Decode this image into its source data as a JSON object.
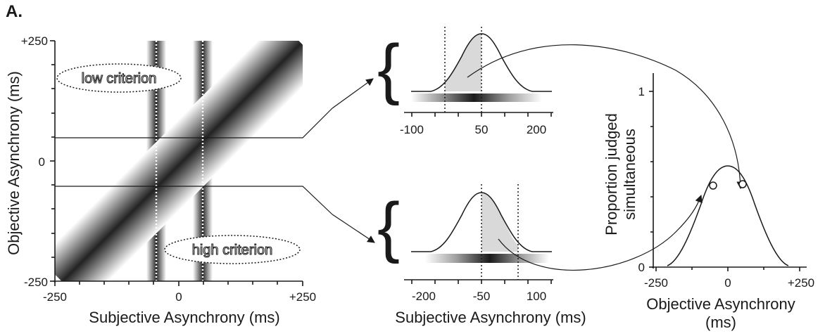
{
  "panel_label": "A.",
  "main_plot": {
    "x_ticks": [
      "-250",
      "0",
      "+250"
    ],
    "y_ticks": [
      "+250",
      "0",
      "-250"
    ],
    "xlabel": "Subjective Asynchrony (ms)",
    "ylabel": "Objective Asynchrony (ms)",
    "low_criterion_label": "low criterion",
    "high_criterion_label": "high criterion",
    "criteria_ms": [
      -50,
      50
    ],
    "slice_levels_ms": [
      50,
      -50
    ]
  },
  "top_slice": {
    "x_ticks": [
      "-100",
      "50",
      "200"
    ],
    "gaussian_mean_ms": 50,
    "criterion_lines_ms": [
      -50,
      50
    ]
  },
  "bottom_slice": {
    "x_ticks": [
      "-200",
      "-50",
      "100"
    ],
    "gaussian_mean_ms": -50,
    "criterion_lines_ms": [
      -50,
      50
    ],
    "xlabel": "Subjective Asynchrony (ms)"
  },
  "sj_plot": {
    "x_ticks": [
      "-250",
      "0",
      "+250"
    ],
    "y_ticks": [
      "1",
      "0"
    ],
    "xlabel_line1": "Objective Asynchrony",
    "xlabel_line2": "(ms)",
    "ylabel_line1": "Proportion judged",
    "ylabel_line2": "simultaneous",
    "marked_points_ms": [
      -50,
      50
    ]
  },
  "colors": {
    "ink": "#1a1a1a",
    "band_dark": "#222222",
    "shade_fill": "#d9d9d9"
  }
}
